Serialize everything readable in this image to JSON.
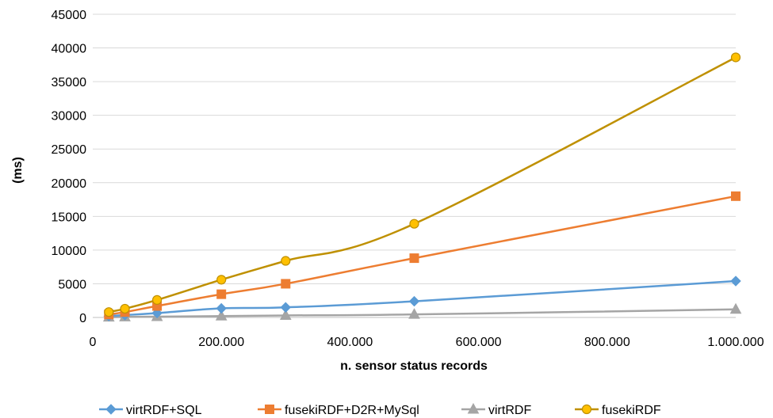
{
  "chart_data": {
    "type": "line",
    "xlabel": "n. sensor status records",
    "ylabel": "(ms)",
    "xlim": [
      0,
      1000000
    ],
    "ylim": [
      0,
      45000
    ],
    "x_ticks": [
      0,
      200000,
      400000,
      600000,
      800000,
      1000000
    ],
    "x_tick_labels": [
      "0",
      "200.000",
      "400.000",
      "600.000",
      "800.000",
      "1.000.000"
    ],
    "y_ticks": [
      0,
      5000,
      10000,
      15000,
      20000,
      25000,
      30000,
      35000,
      40000,
      45000
    ],
    "y_tick_labels": [
      "0",
      "5000",
      "10000",
      "15000",
      "20000",
      "25000",
      "30000",
      "35000",
      "40000",
      "45000"
    ],
    "grid": "horizontal",
    "legend_position": "bottom",
    "x": [
      25000,
      50000,
      100000,
      200000,
      300000,
      500000,
      1000000
    ],
    "series": [
      {
        "name": "virtRDF+SQL",
        "color": "#5b9bd5",
        "marker": "diamond",
        "values": [
          200,
          350,
          650,
          1350,
          1500,
          2400,
          5400
        ]
      },
      {
        "name": "fusekiRDF+D2R+MySql",
        "color": "#ed7d31",
        "marker": "square",
        "values": [
          450,
          800,
          1700,
          3450,
          5000,
          8800,
          18000
        ]
      },
      {
        "name": "virtRDF",
        "color": "#a5a5a5",
        "marker": "triangle",
        "values": [
          50,
          80,
          120,
          200,
          300,
          450,
          1200
        ]
      },
      {
        "name": "fusekiRDF",
        "color": "#bf9000",
        "marker": "circle",
        "fill": "#ffc000",
        "values": [
          800,
          1300,
          2600,
          5600,
          8400,
          13900,
          38600
        ]
      }
    ]
  }
}
